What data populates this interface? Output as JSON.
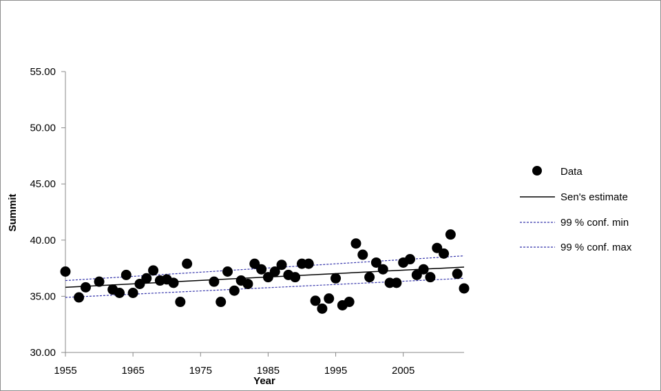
{
  "chart_data": {
    "type": "scatter",
    "xlabel": "Year",
    "ylabel": "Summit",
    "xlim": [
      1955,
      2014
    ],
    "ylim": [
      30,
      55
    ],
    "x_ticks": [
      "1955",
      "1965",
      "1975",
      "1985",
      "1995",
      "2005"
    ],
    "x_tick_values": [
      1955,
      1965,
      1975,
      1985,
      1995,
      2005
    ],
    "y_ticks": [
      "30.00",
      "35.00",
      "40.00",
      "45.00",
      "50.00",
      "55.00"
    ],
    "y_tick_values": [
      30,
      35,
      40,
      45,
      50,
      55
    ],
    "grid": false,
    "legend_position": "right",
    "series": [
      {
        "name": "Data",
        "kind": "points",
        "color": "#000000",
        "x": [
          1955,
          1957,
          1958,
          1960,
          1962,
          1963,
          1964,
          1965,
          1966,
          1967,
          1968,
          1969,
          1970,
          1971,
          1972,
          1973,
          1977,
          1978,
          1979,
          1980,
          1981,
          1982,
          1983,
          1984,
          1985,
          1986,
          1987,
          1988,
          1989,
          1990,
          1991,
          1992,
          1993,
          1994,
          1995,
          1996,
          1997,
          1998,
          1999,
          2000,
          2001,
          2002,
          2003,
          2004,
          2005,
          2006,
          2007,
          2008,
          2009,
          2010,
          2011,
          2012,
          2013,
          2014
        ],
        "y": [
          37.2,
          34.9,
          35.8,
          36.3,
          35.6,
          35.3,
          36.9,
          35.3,
          36.1,
          36.6,
          37.3,
          36.4,
          36.5,
          36.2,
          34.5,
          37.9,
          36.3,
          34.5,
          37.2,
          35.5,
          36.4,
          36.1,
          37.9,
          37.4,
          36.7,
          37.2,
          37.8,
          36.9,
          36.7,
          37.9,
          37.9,
          34.6,
          33.9,
          34.8,
          36.6,
          34.2,
          34.5,
          39.7,
          38.7,
          36.7,
          38.0,
          37.4,
          36.2,
          36.2,
          38.0,
          38.3,
          36.9,
          37.4,
          36.7,
          39.3,
          38.8,
          40.5,
          37.0,
          35.7
        ]
      },
      {
        "name": "Sen's estimate",
        "kind": "line",
        "color": "#000000",
        "dash": "solid",
        "x": [
          1955,
          2014
        ],
        "y": [
          35.8,
          37.6
        ]
      },
      {
        "name": "99 % conf. min",
        "kind": "line",
        "color": "#3333aa",
        "dash": "dashed",
        "x": [
          1955,
          2014
        ],
        "y": [
          34.9,
          36.6
        ]
      },
      {
        "name": "99 % conf. max",
        "kind": "line",
        "color": "#3333aa",
        "dash": "dashed",
        "x": [
          1955,
          2014
        ],
        "y": [
          36.4,
          38.6
        ]
      }
    ]
  }
}
